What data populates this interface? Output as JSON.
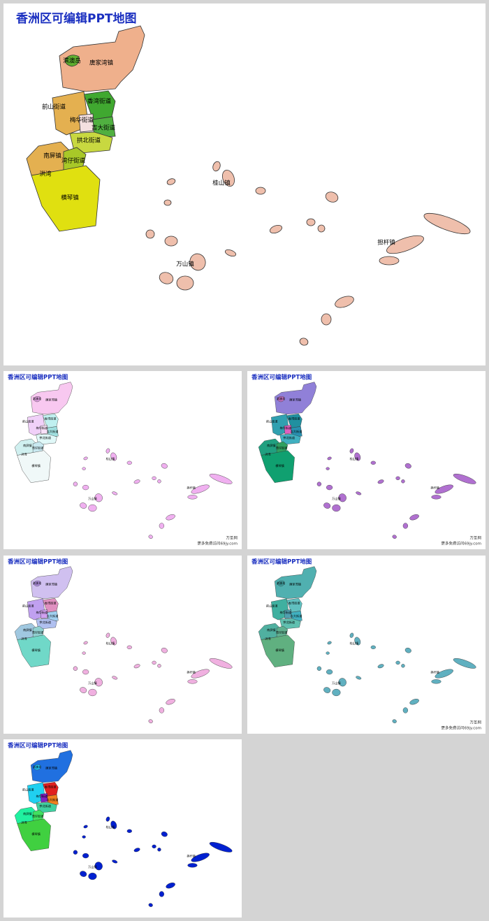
{
  "title": "香洲区可编辑PPT地图",
  "labels": [
    "唐家湾镇",
    "淇澳岛",
    "香湾街道",
    "前山街道",
    "梅华街道",
    "吉大街道",
    "拱北街道",
    "南屏镇",
    "湾仔街道",
    "洪湾",
    "横琴镇",
    "桂山镇",
    "万山镇",
    "担杆镇"
  ],
  "panels": [
    {
      "colors": [
        "#efb08c",
        "#60b030",
        "#40a830",
        "#e4b050",
        "#f4e0e0",
        "#50b040",
        "#c8d840",
        "#e4b050",
        "#a8c828",
        "#e0e010",
        "#efbfac"
      ]
    },
    {
      "colors": [
        "#f8c8f0",
        "#e0a0e0",
        "#c0f0f0",
        "#f0d0f8",
        "#f8e0f8",
        "#a0e0e0",
        "#e0f8f8",
        "#d0f0f0",
        "#c8e8f0",
        "#f0f8f8",
        "#f0b0f0"
      ],
      "footer": [
        "万圣网",
        "更多免费访问69jy.com"
      ]
    },
    {
      "colors": [
        "#9080d8",
        "#c070c0",
        "#2090a0",
        "#30a0b0",
        "#e060c0",
        "#2890b0",
        "#40b0c0",
        "#20a080",
        "#30a060",
        "#10a070",
        "#b070d0"
      ],
      "footer": [
        "万圣网",
        "更多免费访问69jy.com"
      ]
    },
    {
      "colors": [
        "#d0c0f0",
        "#b090e0",
        "#e090c0",
        "#c0a0f0",
        "#d0a0f0",
        "#a0d0f0",
        "#b0c0f0",
        "#a0c8e0",
        "#90d0d0",
        "#70d8c8",
        "#f0b0e0"
      ]
    },
    {
      "colors": [
        "#50b0b0",
        "#40a0a0",
        "#60c0c0",
        "#40b0a0",
        "#50a0b0",
        "#40b0c0",
        "#60c0b0",
        "#50b0a0",
        "#60b090",
        "#60b080",
        "#60b0c0"
      ],
      "footer": [
        "万圣网",
        "更多免费访问69jy.com"
      ]
    },
    {
      "colors": [
        "#2070e0",
        "#20c0f0",
        "#e02020",
        "#20d0f0",
        "#8020c0",
        "#f08020",
        "#40d0a0",
        "#20f0a0",
        "#40e060",
        "#40d040",
        "#0020d0"
      ]
    }
  ]
}
